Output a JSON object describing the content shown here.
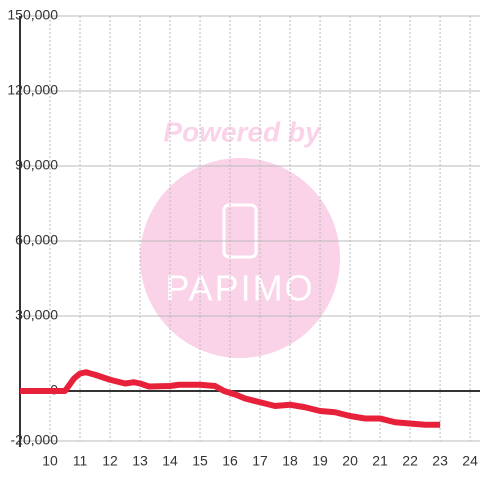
{
  "chart_data": {
    "type": "line",
    "watermark": {
      "top": "Powered by",
      "brand": "PAPIMO"
    },
    "x": [
      9,
      10.5,
      10.8,
      11,
      11.2,
      11.5,
      12,
      12.5,
      12.8,
      13,
      13.3,
      14,
      14.3,
      15,
      15.5,
      15.8,
      16.2,
      16.5,
      17,
      17.5,
      18,
      18.5,
      19,
      19.5,
      20,
      20.5,
      21,
      21.5,
      22,
      22.5,
      23
    ],
    "series": [
      {
        "color": "#e8213a",
        "values": [
          0,
          0,
          5000,
          7000,
          7500,
          6500,
          4500,
          3000,
          3500,
          3000,
          1800,
          2000,
          2500,
          2500,
          2000,
          0,
          -1500,
          -3000,
          -4500,
          -6000,
          -5500,
          -6500,
          -8000,
          -8500,
          -10000,
          -11000,
          -11000,
          -12500,
          -13000,
          -13500,
          -13500
        ]
      }
    ],
    "xlim": [
      9,
      24.33
    ],
    "xticks": [
      10,
      11,
      12,
      13,
      14,
      15,
      16,
      17,
      18,
      19,
      20,
      21,
      22,
      23,
      24
    ],
    "ylim": [
      -20000,
      150000
    ],
    "yticks": [
      {
        "value": -20000,
        "label": "-20,000"
      },
      0,
      {
        "value": 30000,
        "label": "30,000"
      },
      {
        "value": 60000,
        "label": "60,000"
      },
      {
        "value": 90000,
        "label": "90,000"
      },
      {
        "value": 120000,
        "label": "120,000"
      },
      {
        "value": 150000,
        "label": "150,000"
      }
    ],
    "grid": true
  }
}
